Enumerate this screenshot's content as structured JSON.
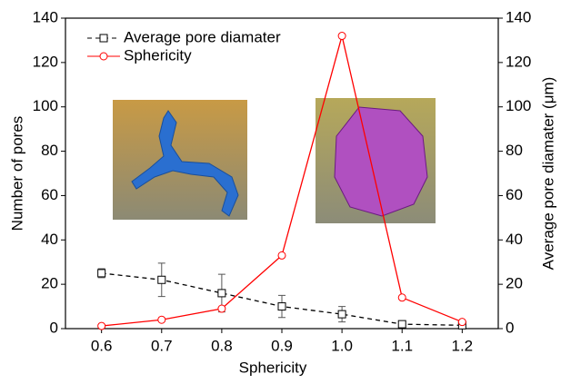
{
  "chart_data": {
    "type": "line",
    "xlabel": "Sphericity",
    "ylabel": "Number of pores",
    "y2label": "Average pore diamater (μm)",
    "x": [
      0.6,
      0.7,
      0.8,
      0.9,
      1.0,
      1.1,
      1.2
    ],
    "xlim": [
      0.54,
      1.26
    ],
    "xticks": [
      0.6,
      0.7,
      0.8,
      0.9,
      {
        "value": 1,
        "label": "1.0"
      },
      1.1,
      1.2
    ],
    "ylim": [
      0,
      140
    ],
    "yticks": [
      0,
      20,
      40,
      60,
      80,
      100,
      120,
      140
    ],
    "y2lim": [
      0,
      140
    ],
    "y2ticks": [
      0,
      20,
      40,
      60,
      80,
      100,
      120,
      140
    ],
    "legend": "upper left",
    "series": [
      {
        "name": "Average pore diamater",
        "color": "#000000",
        "axis": "y2",
        "marker": "square",
        "dashed": true,
        "values": [
          25,
          22,
          16,
          10,
          6.5,
          2,
          1.5
        ],
        "errors": [
          2,
          7.5,
          8.5,
          5,
          3.5,
          1,
          1
        ]
      },
      {
        "name": "Sphericity",
        "color": "#ff0000",
        "marker": "circle",
        "values": [
          1.2,
          4,
          9,
          33,
          132,
          14,
          3
        ]
      }
    ]
  }
}
